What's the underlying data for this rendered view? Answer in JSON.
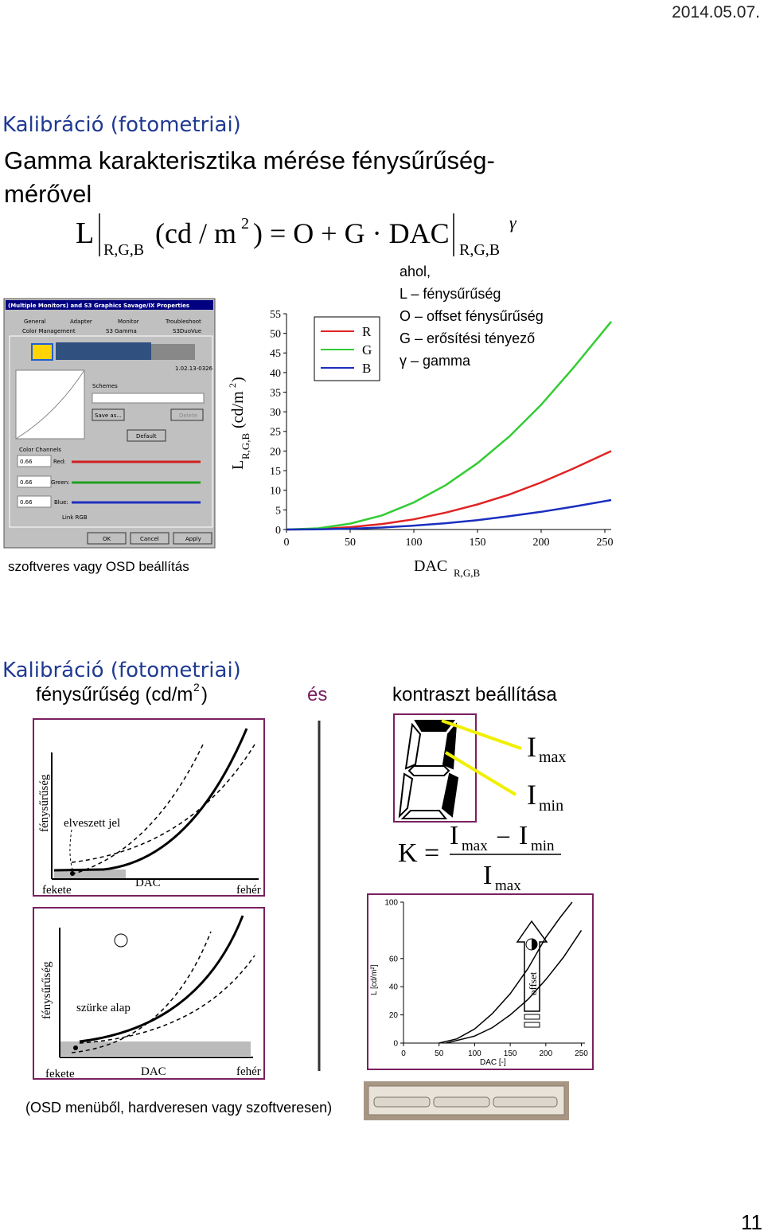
{
  "header": {
    "date": "2014.05.07."
  },
  "slide1": {
    "title": "Kalibráció (fotometriai)",
    "subtitle_1": "Gamma karakterisztika mérése fénysűrűség-",
    "subtitle_2": "mérővel",
    "formula": {
      "L": "L",
      "sub1": "R,G,B",
      "unit": "(cd / m",
      "sup": "2",
      "rest": ") = O + G · DAC",
      "sub2": "R,G,B",
      "gamma": "γ"
    },
    "notes": {
      "intro": "ahol,",
      "items": [
        "L – fénysűrűség",
        "O – offset fénysűrűség",
        "G – erősítési tényező",
        "γ – gamma"
      ]
    },
    "dialog": {
      "title": "(Multiple Monitors) and S3 Graphics Savage/IX Properties",
      "tabs": [
        "General",
        "Adapter",
        "Monitor",
        "Troubleshoot",
        "Color Management",
        "S3 Gamma",
        "S3DuoVue"
      ],
      "version": "1.02.13-0326",
      "schemes": "Schemes",
      "buttons": [
        "Save as...",
        "Delete",
        "Default",
        "OK",
        "Cancel",
        "Apply"
      ],
      "channels_label": "Color Channels",
      "channels": [
        {
          "value": "0.66",
          "name": "Red:"
        },
        {
          "value": "0.66",
          "name": "Green:"
        },
        {
          "value": "0.66",
          "name": "Blue:"
        }
      ],
      "link": "Link RGB"
    },
    "caption": "szoftveres vagy OSD beállítás",
    "chart": {
      "type": "line",
      "y_label": {
        "L": "L",
        "sub": "R,G,B",
        "unit": "(cd/m",
        "sup": "2",
        "close": ")"
      },
      "x_label": {
        "main": "DAC",
        "sub": "R,G,B"
      },
      "x": [
        0,
        25,
        50,
        75,
        100,
        125,
        150,
        175,
        200,
        225,
        255
      ],
      "series": [
        {
          "name": "R",
          "color": "#e02424",
          "values": [
            0,
            0.1,
            0.6,
            1.4,
            2.6,
            4.3,
            6.4,
            8.9,
            12,
            15.5,
            20
          ]
        },
        {
          "name": "G",
          "color": "#33cc33",
          "values": [
            0,
            0.3,
            1.5,
            3.6,
            6.9,
            11.3,
            16.9,
            23.7,
            31.8,
            41.1,
            53
          ]
        },
        {
          "name": "B",
          "color": "#1a2fbf",
          "values": [
            0,
            0.05,
            0.2,
            0.5,
            1,
            1.6,
            2.4,
            3.4,
            4.5,
            5.8,
            7.5
          ]
        }
      ],
      "xlim": [
        0,
        255
      ],
      "ylim": [
        0,
        55
      ],
      "xticks": [
        0,
        50,
        100,
        150,
        200,
        250
      ],
      "yticks": [
        0,
        5,
        10,
        15,
        20,
        25,
        30,
        35,
        40,
        45,
        50,
        55
      ]
    }
  },
  "slide2": {
    "title": "Kalibráció (fotometriai)",
    "heading": {
      "left": "fénysűrűség (cd/m",
      "sup": "2",
      "close": ")",
      "and": "és",
      "right": "kontraszt beállítása"
    },
    "figure1": {
      "y_label": "fénysűrűség",
      "note": "elveszett jel",
      "black": "fekete",
      "x_label": "DAC",
      "white": "fehér"
    },
    "figure2": {
      "y_label": "fénysűrűség",
      "note": "szürke alap",
      "black": "fekete",
      "x_label": "DAC",
      "white": "fehér"
    },
    "imax": {
      "I": "I",
      "sub": "max"
    },
    "imin": {
      "I": "I",
      "sub": "min"
    },
    "contrast": {
      "K": "K =",
      "num_I1": "I",
      "num_sub1": "max",
      "minus": "–",
      "num_I2": "I",
      "num_sub2": "min",
      "den_I": "I",
      "den_sub": "max"
    },
    "chart": {
      "type": "line",
      "y_label": "L [cd/m²]",
      "x_label": "DAC [-]",
      "arrow_label": "offset",
      "series": [
        {
          "color": "#000000",
          "x": [
            50,
            75,
            100,
            125,
            150,
            175,
            200,
            220,
            237
          ],
          "values": [
            0,
            3,
            10,
            21,
            35,
            53,
            75,
            89,
            100
          ]
        },
        {
          "color": "#000000",
          "x": [
            60,
            100,
            125,
            150,
            175,
            200,
            225,
            250
          ],
          "values": [
            0,
            5,
            11,
            20,
            31,
            45,
            61,
            80
          ]
        }
      ],
      "xlim": [
        0,
        255
      ],
      "ylim": [
        0,
        100
      ],
      "xticks": [
        0,
        50,
        100,
        150,
        200,
        250
      ],
      "yticks": [
        0,
        20,
        40,
        60,
        100
      ]
    },
    "caption": "(OSD menüből, hardveresen vagy szoftveresen)"
  },
  "page_number": "11"
}
